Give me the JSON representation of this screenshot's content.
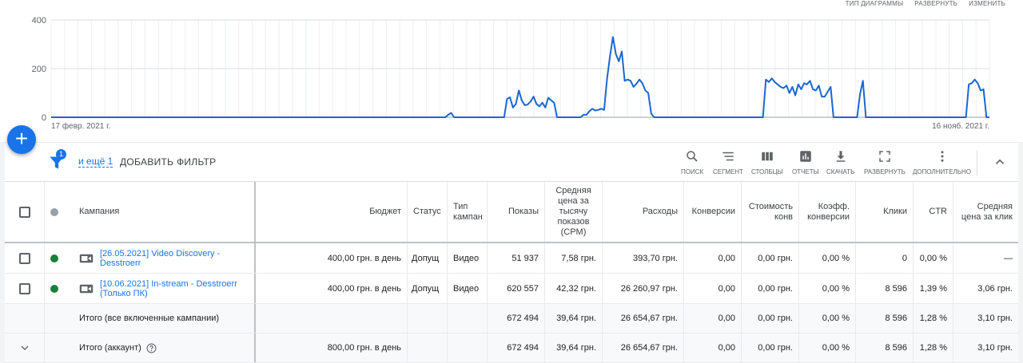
{
  "chart_header": {
    "chart_type": "ТИП ДИАГРАММЫ",
    "expand": "РАЗВЕРНУТЬ",
    "edit": "ИЗМЕНИТЬ"
  },
  "chart_data": {
    "type": "line",
    "y_ticks": [
      "400",
      "200",
      "0"
    ],
    "ylim": [
      0,
      400
    ],
    "x_start_label": "17 февр. 2021 г.",
    "x_end_label": "16 нояб. 2021 г.",
    "grid": true,
    "series": [
      {
        "color": "#1967d2",
        "values": [
          0,
          0,
          0,
          0,
          0,
          0,
          0,
          0,
          0,
          0,
          0,
          0,
          0,
          0,
          0,
          0,
          0,
          0,
          0,
          0,
          0,
          0,
          0,
          0,
          0,
          0,
          0,
          0,
          0,
          0,
          0,
          0,
          0,
          0,
          0,
          0,
          0,
          0,
          0,
          0,
          0,
          0,
          0,
          0,
          0,
          0,
          0,
          0,
          0,
          0,
          0,
          0,
          0,
          0,
          0,
          0,
          0,
          0,
          0,
          0,
          0,
          0,
          0,
          0,
          0,
          0,
          0,
          0,
          0,
          0,
          0,
          0,
          0,
          0,
          0,
          0,
          0,
          0,
          0,
          0,
          0,
          0,
          0,
          0,
          0,
          0,
          0,
          0,
          0,
          0,
          0,
          0,
          0,
          0,
          0,
          0,
          0,
          0,
          0,
          0,
          0,
          0,
          0,
          0,
          0,
          0,
          0,
          0,
          0,
          0,
          0,
          0,
          0,
          0,
          0,
          0,
          0,
          0,
          0,
          0,
          0,
          0,
          0,
          0,
          0,
          0,
          0,
          0,
          0,
          0,
          0,
          0,
          0,
          0,
          0,
          10,
          18,
          0,
          0,
          0,
          0,
          0,
          0,
          0,
          0,
          0,
          0,
          0,
          0,
          0,
          0,
          0,
          0,
          0,
          0,
          75,
          82,
          40,
          55,
          110,
          70,
          50,
          52,
          65,
          85,
          55,
          45,
          60,
          40,
          80,
          70,
          60,
          0,
          0,
          0,
          0,
          0,
          0,
          0,
          0,
          0,
          10,
          10,
          25,
          35,
          28,
          30,
          35,
          30,
          160,
          250,
          330,
          260,
          230,
          270,
          150,
          155,
          150,
          125,
          138,
          155,
          140,
          110,
          100,
          15,
          0,
          0,
          0,
          0,
          0,
          0,
          0,
          0,
          0,
          0,
          0,
          0,
          0,
          0,
          0,
          0,
          0,
          0,
          0,
          0,
          0,
          0,
          0,
          0,
          0,
          0,
          0,
          0,
          0,
          0,
          0,
          0,
          0,
          0,
          0,
          0,
          0,
          0,
          155,
          145,
          160,
          145,
          135,
          125,
          120,
          130,
          100,
          125,
          90,
          135,
          115,
          140,
          135,
          150,
          115,
          110,
          130,
          85,
          85,
          105,
          125,
          0,
          0,
          0,
          0,
          0,
          0,
          0,
          0,
          0,
          95,
          150,
          0,
          0,
          0,
          0,
          0,
          0,
          0,
          0,
          0,
          0,
          0,
          0,
          0,
          0,
          0,
          0,
          0,
          0,
          0,
          0,
          0,
          0,
          0,
          0,
          0,
          0,
          0,
          0,
          0,
          0,
          0,
          0,
          0,
          0,
          0,
          135,
          140,
          155,
          140,
          110,
          115,
          0,
          0
        ]
      }
    ]
  },
  "fab_label": "+",
  "toolbar": {
    "filter_badge": "1",
    "more_link": "и ещё 1",
    "add_filter": "ДОБАВИТЬ ФИЛЬТР",
    "tools": [
      "ПОИСК",
      "СЕГМЕНТ",
      "СТОЛБЦЫ",
      "ОТЧЕТЫ",
      "СКАЧАТЬ",
      "РАЗВЕРНУТЬ",
      "ДОПОЛНИТЕЛЬНО"
    ]
  },
  "table": {
    "headers": {
      "campaign": "Кампания",
      "budget": "Бюджет",
      "status": "Статус",
      "type": "Тип кампан",
      "impressions": "Показы",
      "cpm": "Средняя цена за тысячу показов (CPM)",
      "cost": "Расходы",
      "conversions": "Конверсии",
      "cost_conv": "Стоимость конв",
      "conv_rate": "Коэфф. конверсии",
      "clicks": "Клики",
      "ctr": "CTR",
      "avg_cpc": "Средняя цена за клик"
    },
    "rows": [
      {
        "status_color": "#188038",
        "campaign": "[26.05.2021] Video Discovery - Desstroerr",
        "budget": "400,00 грн. в день",
        "status": "Допущ",
        "type": "Видео",
        "impressions": "51 937",
        "cpm": "7,58 грн.",
        "cost": "393,70 грн.",
        "conversions": "0,00",
        "cost_conv": "0,00 грн.",
        "conv_rate": "0,00 %",
        "clicks": "0",
        "ctr": "0,00 %",
        "avg_cpc": "—"
      },
      {
        "status_color": "#188038",
        "campaign": "[10.06.2021] In-stream - Desstroerr (Только ПК)",
        "budget": "400,00 грн. в день",
        "status": "Допущ",
        "type": "Видео",
        "impressions": "620 557",
        "cpm": "42,32 грн.",
        "cost": "26 260,97 грн.",
        "conversions": "0,00",
        "cost_conv": "0,00 грн.",
        "conv_rate": "0,00 %",
        "clicks": "8 596",
        "ctr": "1,39 %",
        "avg_cpc": "3,06 грн."
      }
    ],
    "totals": [
      {
        "label": "Итого (все включенные кампании)",
        "budget": "",
        "impressions": "672 494",
        "cpm": "39,64 грн.",
        "cost": "26 654,67 грн.",
        "conversions": "0,00",
        "cost_conv": "0,00 грн.",
        "conv_rate": "0,00 %",
        "clicks": "8 596",
        "ctr": "1,28 %",
        "avg_cpc": "3,10 грн."
      },
      {
        "label": "Итого (аккаунт)",
        "budget": "800,00 грн. в день",
        "impressions": "672 494",
        "cpm": "39,64 грн.",
        "cost": "26 654,67 грн.",
        "conversions": "0,00",
        "cost_conv": "0,00 грн.",
        "conv_rate": "0,00 %",
        "clicks": "8 596",
        "ctr": "1,28 %",
        "avg_cpc": "3,10 грн."
      }
    ]
  }
}
